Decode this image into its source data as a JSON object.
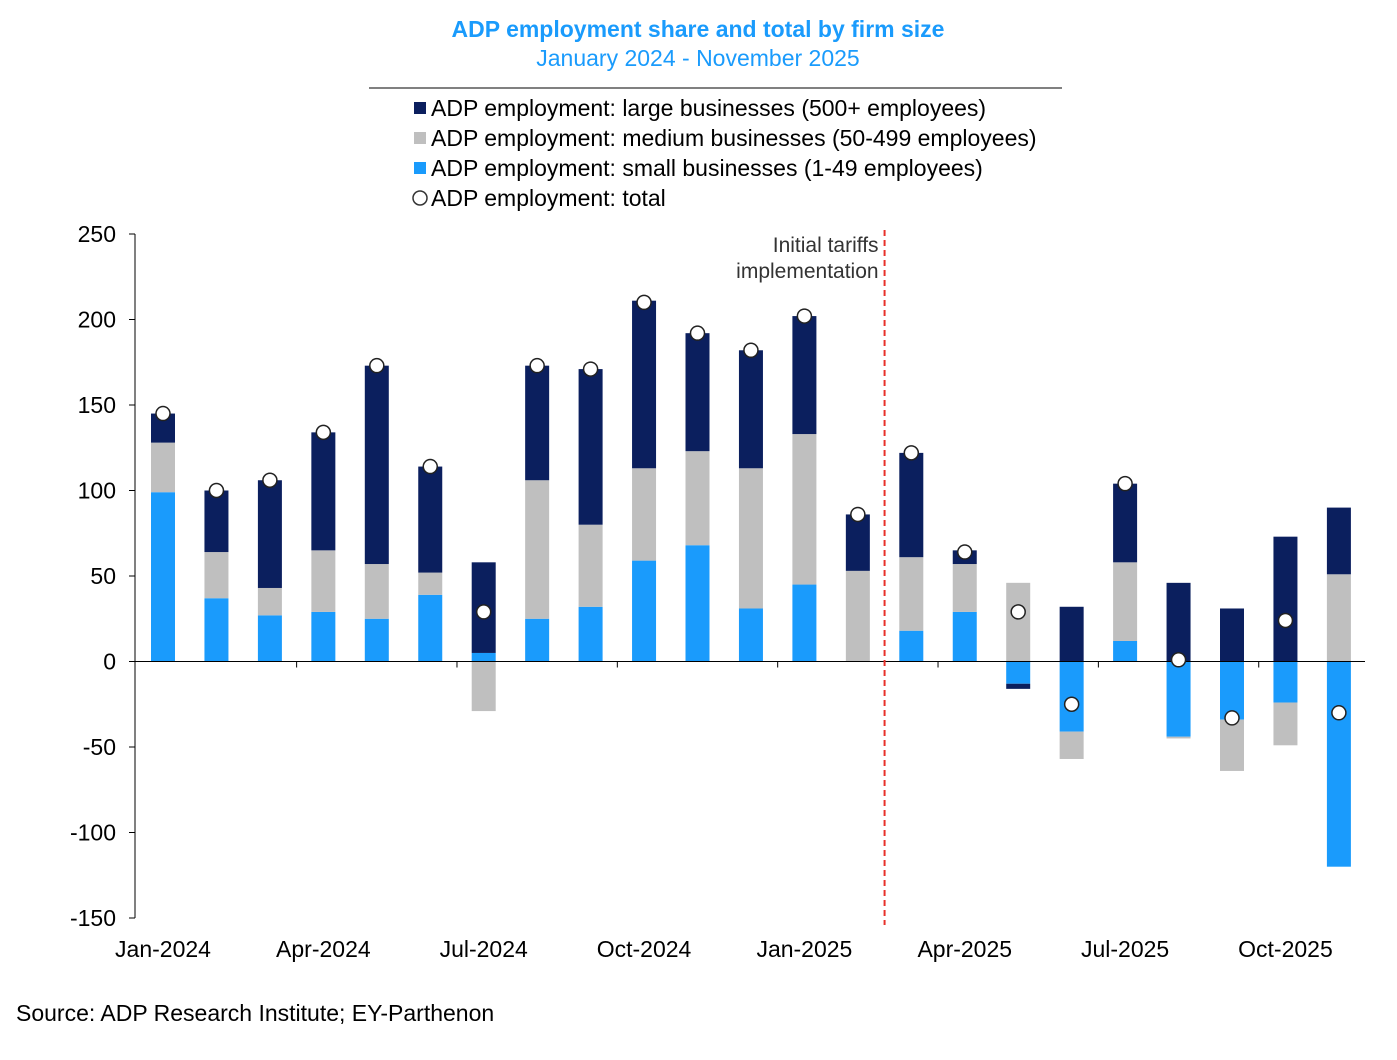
{
  "chart_data": {
    "type": "bar",
    "stacked": true,
    "title": "ADP employment share and total by firm size",
    "subtitle": "January 2024 - November 2025",
    "ylim": [
      -150,
      250
    ],
    "yticks": [
      250,
      200,
      150,
      100,
      50,
      0,
      -50,
      -100,
      -150
    ],
    "xtick_labels": [
      "Jan-2024",
      "Apr-2024",
      "Jul-2024",
      "Oct-2024",
      "Jan-2025",
      "Apr-2025",
      "Jul-2025",
      "Oct-2025"
    ],
    "categories": [
      "Jan-2024",
      "Feb-2024",
      "Mar-2024",
      "Apr-2024",
      "May-2024",
      "Jun-2024",
      "Jul-2024",
      "Aug-2024",
      "Sep-2024",
      "Oct-2024",
      "Nov-2024",
      "Dec-2024",
      "Jan-2025",
      "Feb-2025",
      "Mar-2025",
      "Apr-2025",
      "May-2025",
      "Jun-2025",
      "Jul-2025",
      "Aug-2025",
      "Sep-2025",
      "Oct-2025",
      "Nov-2025"
    ],
    "series": [
      {
        "name": "ADP employment: large businesses (500+ employees)",
        "color": "#0b1f5e",
        "kind": "bar",
        "values": [
          17,
          36,
          63,
          69,
          116,
          62,
          53,
          67,
          91,
          98,
          69,
          69,
          69,
          33,
          61,
          8,
          -3,
          32,
          46,
          46,
          31,
          73,
          39
        ]
      },
      {
        "name": "ADP employment: medium businesses (50-499 employees)",
        "color": "#bfbfbf",
        "kind": "bar",
        "values": [
          29,
          27,
          16,
          36,
          32,
          13,
          -29,
          81,
          48,
          54,
          55,
          82,
          88,
          53,
          43,
          28,
          46,
          -16,
          46,
          -1,
          -30,
          -25,
          51
        ]
      },
      {
        "name": "ADP employment: small businesses (1-49 employees)",
        "color": "#1a9bfc",
        "kind": "bar",
        "values": [
          99,
          37,
          27,
          29,
          25,
          39,
          5,
          25,
          32,
          59,
          68,
          31,
          45,
          0,
          18,
          29,
          -13,
          -41,
          12,
          -44,
          -34,
          -24,
          -120
        ]
      },
      {
        "name": "ADP employment: total",
        "color": "#ffffff",
        "kind": "marker",
        "values": [
          145,
          100,
          106,
          134,
          173,
          114,
          29,
          173,
          171,
          210,
          192,
          182,
          202,
          86,
          122,
          64,
          29,
          -25,
          104,
          1,
          -33,
          24,
          -30
        ]
      }
    ],
    "annotation": {
      "text_line1": "Initial tariffs",
      "text_line2": "implementation",
      "after_category": "Feb-2025",
      "line_color": "#e8322b"
    },
    "legend_position": "top",
    "source": "Source: ADP Research Institute; EY-Parthenon"
  }
}
